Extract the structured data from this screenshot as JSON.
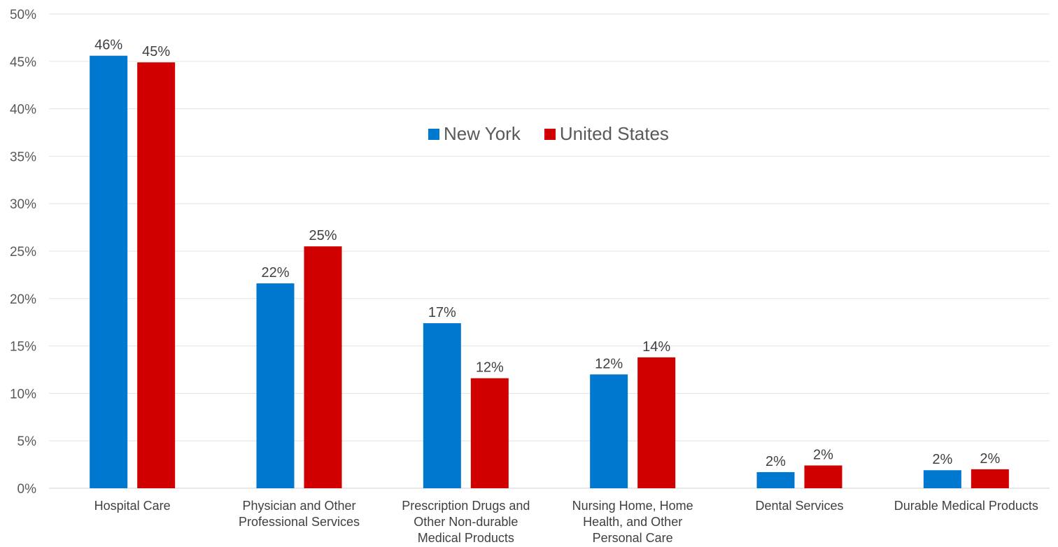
{
  "chart_data": {
    "type": "bar",
    "categories": [
      "Hospital Care",
      "Physician and Other Professional Services",
      "Prescription Drugs and Other Non-durable Medical Products",
      "Nursing Home, Home Health, and Other Personal Care",
      "Dental Services",
      "Durable Medical Products"
    ],
    "category_lines": [
      [
        "Hospital Care"
      ],
      [
        "Physician and Other",
        "Professional Services"
      ],
      [
        "Prescription Drugs and",
        "Other Non-durable",
        "Medical Products"
      ],
      [
        "Nursing Home, Home",
        "Health, and Other",
        "Personal Care"
      ],
      [
        "Dental Services"
      ],
      [
        "Durable Medical Products"
      ]
    ],
    "series": [
      {
        "name": "New York",
        "color": "#0078D0",
        "values": [
          45.6,
          21.6,
          17.4,
          12.0,
          1.7,
          1.9
        ],
        "labels": [
          "46%",
          "22%",
          "17%",
          "12%",
          "2%",
          "2%"
        ]
      },
      {
        "name": "United States",
        "color": "#D00000",
        "values": [
          44.9,
          25.5,
          11.6,
          13.8,
          2.4,
          2.0
        ],
        "labels": [
          "45%",
          "25%",
          "12%",
          "14%",
          "2%",
          "2%"
        ]
      }
    ],
    "ylim": [
      0,
      50
    ],
    "yticks": [
      "0%",
      "5%",
      "10%",
      "15%",
      "20%",
      "25%",
      "30%",
      "35%",
      "40%",
      "45%",
      "50%"
    ],
    "ytick_values": [
      0,
      5,
      10,
      15,
      20,
      25,
      30,
      35,
      40,
      45,
      50
    ],
    "grid": true,
    "legend_position": "top-center",
    "title": "",
    "xlabel": "",
    "ylabel": ""
  }
}
